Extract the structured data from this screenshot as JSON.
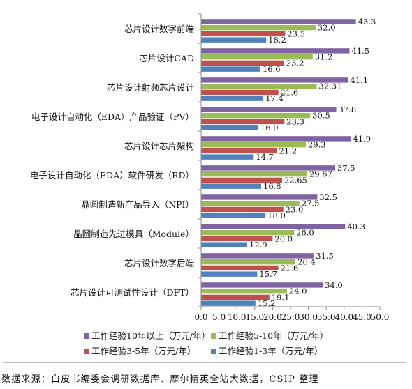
{
  "chart_data": {
    "type": "bar",
    "orientation": "horizontal",
    "categories": [
      "芯片设计数字前端",
      "芯片设计CAD",
      "芯片设计射频芯片设计",
      "电子设计自动化（EDA）产品验证（PV）",
      "芯片设计芯片架构",
      "电子设计自动化（EDA）软件研发（RD）",
      "晶圆制造新产品导入（NPI）",
      "晶圆制造先进模具（Module）",
      "芯片设计数字后端",
      "芯片设计可测试性设计（DFT）"
    ],
    "series": [
      {
        "name": "工作经验10年以上（万元/年）",
        "color": "#8064a2",
        "values": [
          43.3,
          41.5,
          41.1,
          37.8,
          41.9,
          37.5,
          32.5,
          40.3,
          31.5,
          34.0
        ],
        "labels": [
          "43.3",
          "41.5",
          "41.1",
          "37.8",
          "41.9",
          "37.5",
          "32.5",
          "40.3",
          "31.5",
          "34.0"
        ]
      },
      {
        "name": "工作经验5-10年（万元/年）",
        "color": "#9bbb59",
        "values": [
          32.0,
          31.2,
          32.31,
          30.5,
          29.3,
          29.67,
          27.5,
          26.0,
          26.4,
          24.0
        ],
        "labels": [
          "32.0",
          "31.2",
          "32.31",
          "30.5",
          "29.3",
          "29.67",
          "27.5",
          "26.0",
          "26.4",
          "24.0"
        ]
      },
      {
        "name": "工作经验3-5年（万元/年）",
        "color": "#c0504d",
        "values": [
          23.5,
          23.2,
          21.6,
          23.3,
          21.2,
          22.65,
          23.0,
          20.0,
          21.6,
          19.1
        ],
        "labels": [
          "23.5",
          "23.2",
          "21.6",
          "23.3",
          "21.2",
          "22.65",
          "23.0",
          "20.0",
          "21.6",
          "19.1"
        ]
      },
      {
        "name": "工作经验1-3年（万元/年）",
        "color": "#4f81bd",
        "values": [
          18.2,
          16.6,
          17.4,
          16.0,
          14.7,
          16.8,
          18.0,
          12.9,
          15.7,
          15.2
        ],
        "labels": [
          "18.2",
          "16.6",
          "17.4",
          "16.0",
          "14.7",
          "16.8",
          "18.0",
          "12.9",
          "15.7",
          "15.2"
        ]
      }
    ],
    "xlim": [
      0,
      50
    ],
    "xticks": [
      "0.0",
      "5.0",
      "10.0",
      "15.0",
      "20.0",
      "25.0",
      "30.0",
      "35.0",
      "40.0",
      "45.0",
      "50.0"
    ],
    "legend_order": [
      0,
      1,
      2,
      3
    ],
    "legend_position": "bottom",
    "grid": false
  },
  "source_note": "数据来源：白皮书编委会调研数据库、摩尔精英全站大数据，CSIP 整理"
}
